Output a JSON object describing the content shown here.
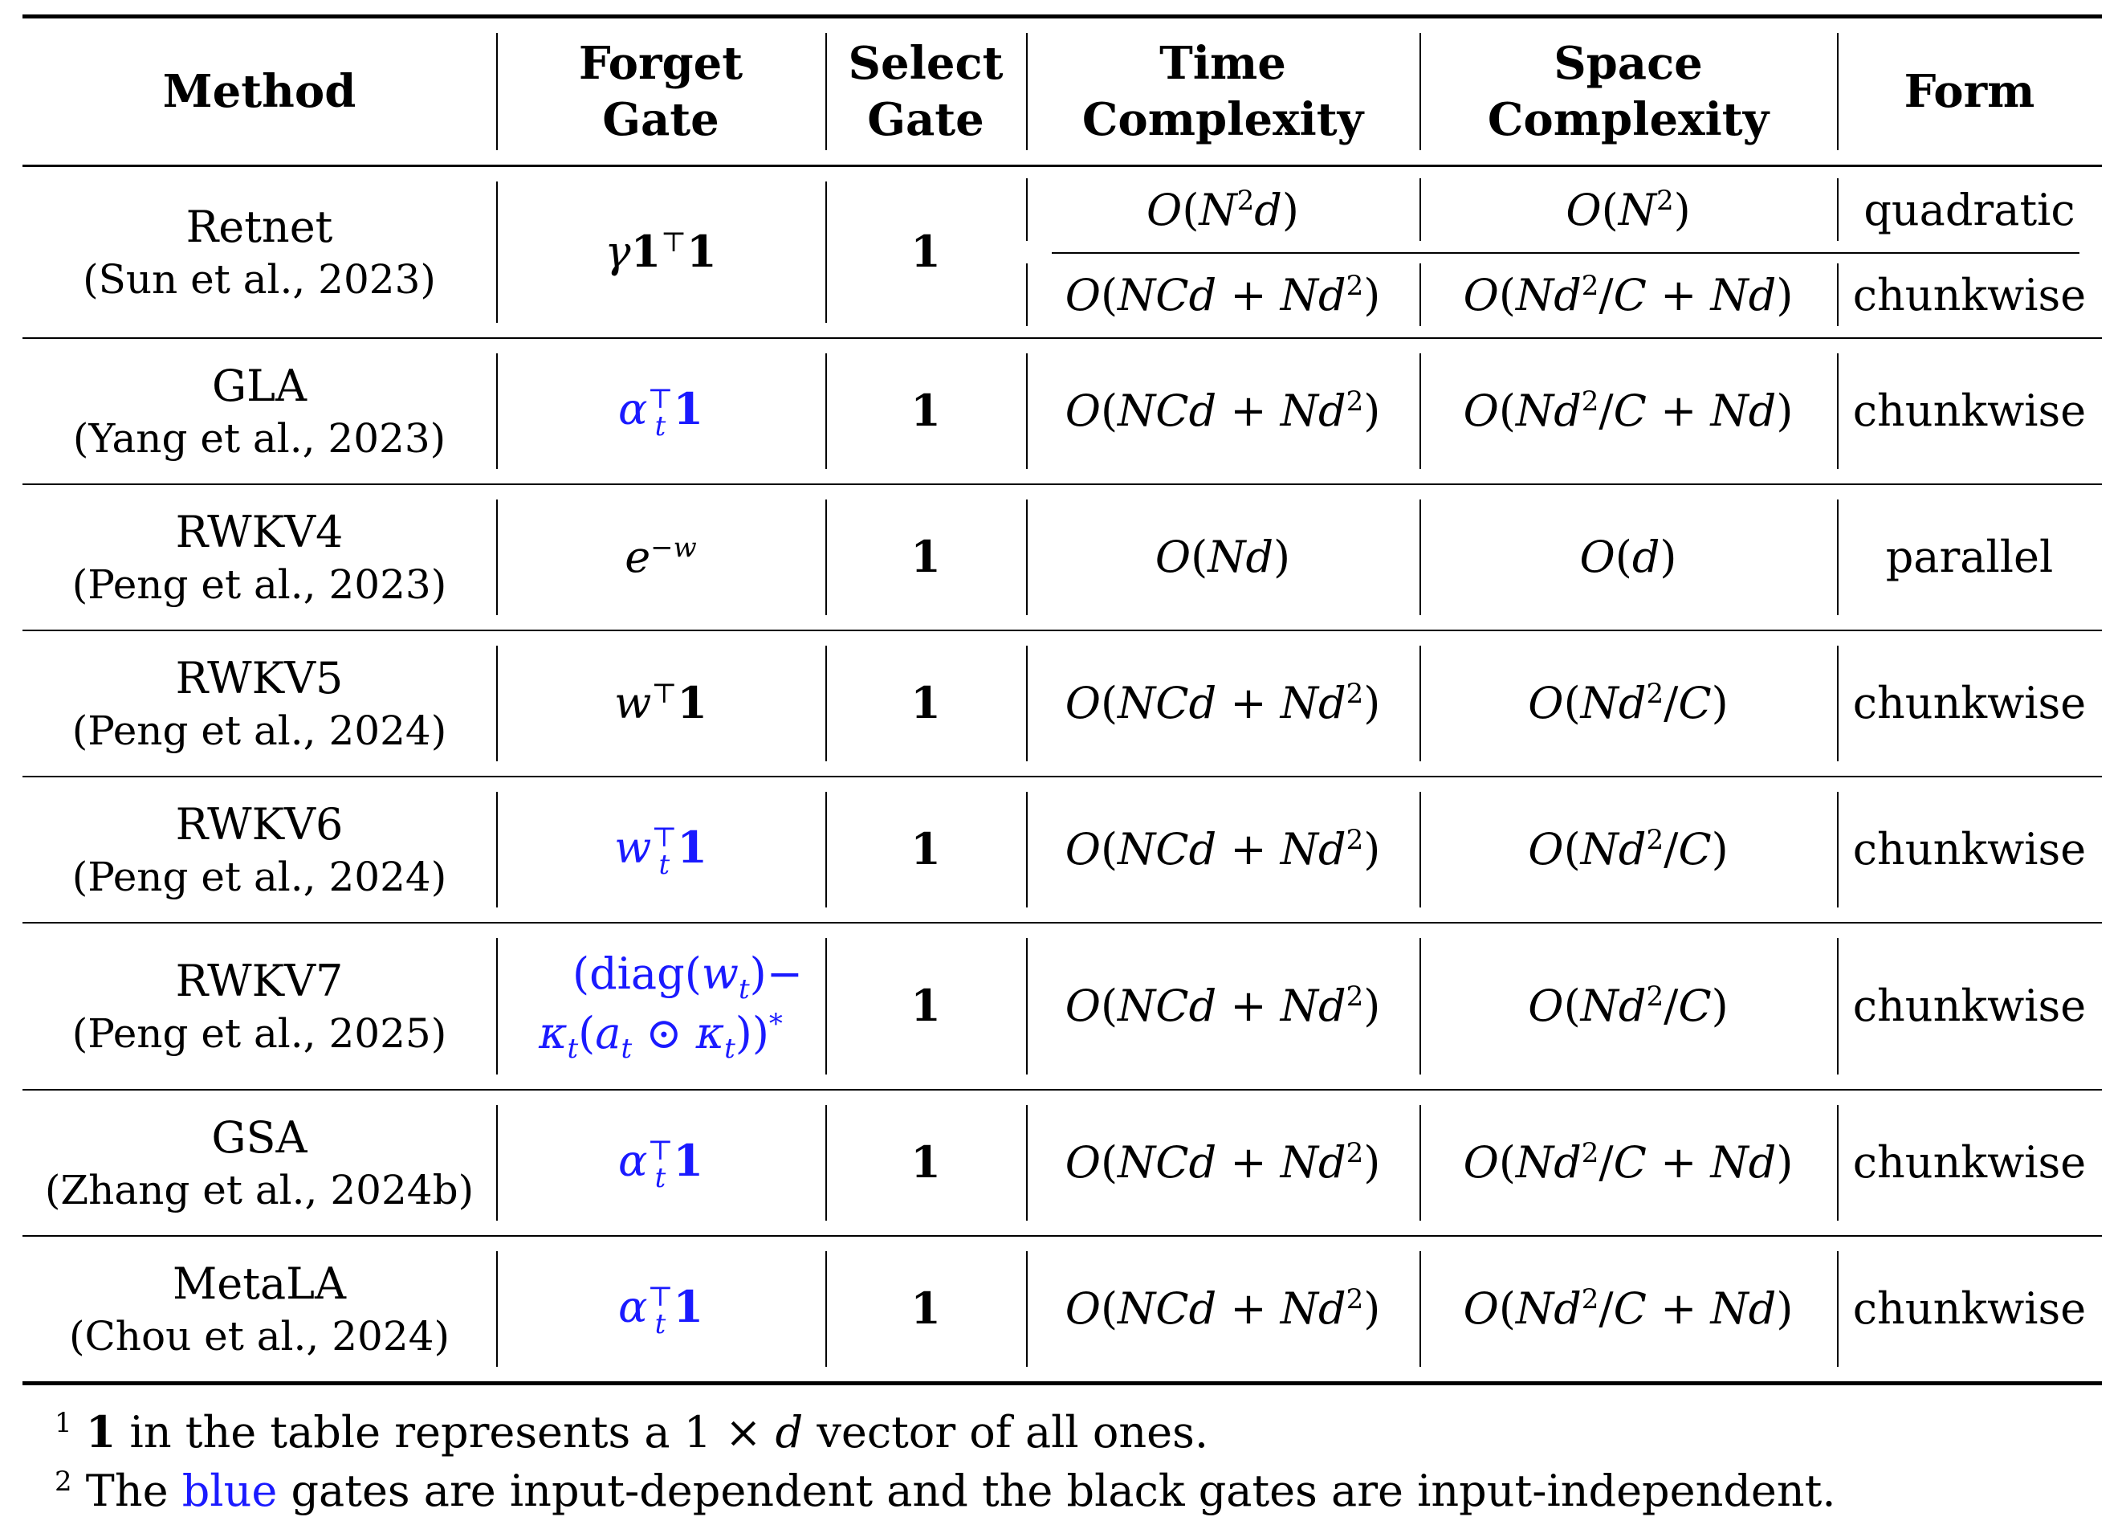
{
  "table": {
    "headers": [
      {
        "line1": "Method",
        "line2": ""
      },
      {
        "line1": "Forget",
        "line2": "Gate"
      },
      {
        "line1": "Select",
        "line2": "Gate"
      },
      {
        "line1": "Time",
        "line2": "Complexity"
      },
      {
        "line1": "Space",
        "line2": "Complexity"
      },
      {
        "line1": "Form",
        "line2": ""
      }
    ],
    "retnet": {
      "name": "Retnet",
      "cite": "(Sun et al., 2023)",
      "forget": "γ1⊤1",
      "select": "1",
      "time_quadratic": "O(N²d)",
      "space_quadratic": "O(N²)",
      "form_quadratic": "quadratic",
      "time_chunk": "O(NCd + Nd²)",
      "space_chunk": "O(Nd²/C + Nd)",
      "form_chunk": "chunkwise"
    },
    "rows": [
      {
        "name": "GLA",
        "cite": "(Yang et al., 2023)",
        "forget": "α_t⊤1",
        "select": "1",
        "time": "O(NCd + Nd²)",
        "space": "O(Nd²/C + Nd)",
        "form": "chunkwise"
      },
      {
        "name": "RWKV4",
        "cite": "(Peng et al., 2023)",
        "forget": "e^−w",
        "select": "1",
        "time": "O(Nd)",
        "space": "O(d)",
        "form": "parallel"
      },
      {
        "name": "RWKV5",
        "cite": "(Peng et al., 2024)",
        "forget": "w⊤1",
        "select": "1",
        "time": "O(NCd + Nd²)",
        "space": "O(Nd²/C)",
        "form": "chunkwise"
      },
      {
        "name": "RWKV6",
        "cite": "(Peng et al., 2024)",
        "forget": "w_t⊤1",
        "select": "1",
        "time": "O(NCd + Nd²)",
        "space": "O(Nd²/C)",
        "form": "chunkwise"
      },
      {
        "name": "RWKV7",
        "cite": "(Peng et al., 2025)",
        "forget_line1": "(diag(w_t)−",
        "forget_line2": "κ_t(a_t ⊙ κ_t))*",
        "select": "1",
        "time": "O(NCd + Nd²)",
        "space": "O(Nd²/C)",
        "form": "chunkwise"
      },
      {
        "name": "GSA",
        "cite": "(Zhang et al., 2024b)",
        "forget": "α_t⊤1",
        "select": "1",
        "time": "O(NCd + Nd²)",
        "space": "O(Nd²/C + Nd)",
        "form": "chunkwise"
      },
      {
        "name": "MetaLA",
        "cite": "(Chou et al., 2024)",
        "forget": "α_t⊤1",
        "select": "1",
        "time": "O(NCd + Nd²)",
        "space": "O(Nd²/C + Nd)",
        "form": "chunkwise"
      }
    ]
  },
  "footnotes": {
    "note1_mark": "1",
    "note1_bold": "1",
    "note1_text_a": " in the table represents a ",
    "note1_math": "1 × d",
    "note1_text_b": " vector of all ones.",
    "note2_mark": "2",
    "note2_text_a": " The ",
    "note2_blue": "blue",
    "note2_text_b": " gates are input-dependent and the black gates are input-independent."
  },
  "colors": {
    "input_dependent": "#1a1aff",
    "input_independent": "#000000"
  }
}
